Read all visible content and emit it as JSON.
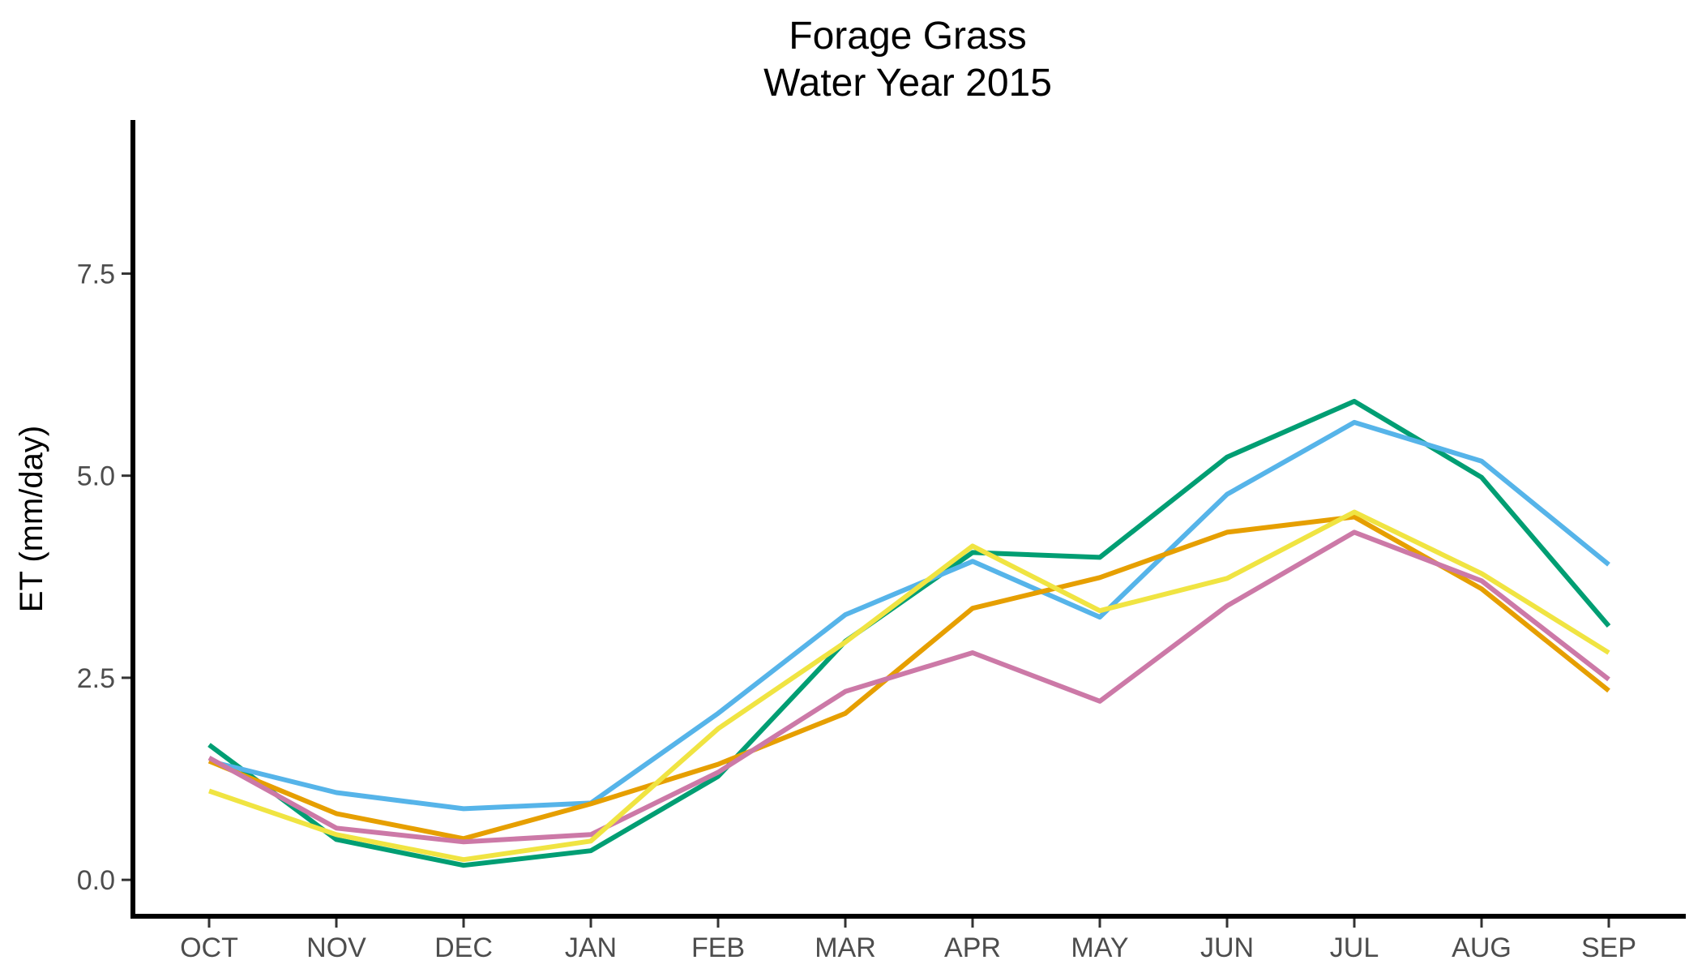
{
  "chart_data": {
    "type": "line",
    "title": [
      "Forage Grass",
      "Water Year 2015"
    ],
    "xlabel": "",
    "ylabel": "ET (mm/day)",
    "categories": [
      "OCT",
      "NOV",
      "DEC",
      "JAN",
      "FEB",
      "MAR",
      "APR",
      "MAY",
      "JUN",
      "JUL",
      "AUG",
      "SEP"
    ],
    "yticks": [
      0.0,
      2.5,
      5.0,
      7.5
    ],
    "ytick_labels": [
      "0.0",
      "2.5",
      "5.0",
      "7.5"
    ],
    "ylim": [
      -0.45,
      9.4
    ],
    "grid": false,
    "legend": "none",
    "series": [
      {
        "color": "#009E73",
        "values": [
          1.67,
          0.5,
          0.18,
          0.36,
          1.28,
          2.95,
          4.05,
          3.99,
          5.23,
          5.92,
          4.98,
          3.14
        ]
      },
      {
        "color": "#56B4E9",
        "values": [
          1.47,
          1.08,
          0.88,
          0.95,
          2.06,
          3.28,
          3.94,
          3.25,
          4.77,
          5.66,
          5.18,
          3.9
        ]
      },
      {
        "color": "#E69F00",
        "values": [
          1.47,
          0.82,
          0.51,
          0.94,
          1.43,
          2.06,
          3.36,
          3.74,
          4.3,
          4.49,
          3.6,
          2.34
        ]
      },
      {
        "color": "#CC79A7",
        "values": [
          1.51,
          0.64,
          0.47,
          0.56,
          1.33,
          2.33,
          2.81,
          2.21,
          3.39,
          4.3,
          3.7,
          2.48
        ]
      },
      {
        "color": "#F0E442",
        "values": [
          1.1,
          0.56,
          0.25,
          0.48,
          1.87,
          2.94,
          4.13,
          3.33,
          3.73,
          4.55,
          3.79,
          2.81
        ]
      }
    ]
  }
}
